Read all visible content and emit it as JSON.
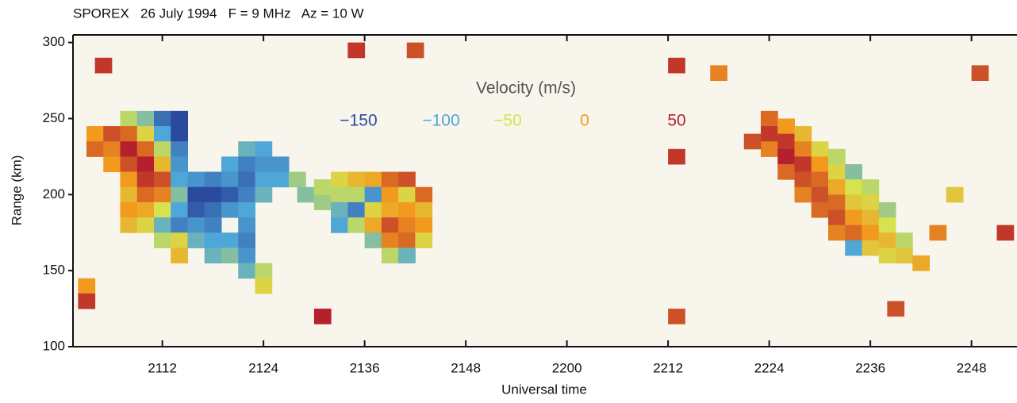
{
  "chart_data": {
    "type": "heatmap",
    "title": "SPOREX   26 July 1994   F = 9 MHz   Az = 10 W",
    "xlabel": "Universal time",
    "ylabel": "Range (km)",
    "xlim": [
      1.4,
      113.4
    ],
    "xticks": [
      {
        "value": 12,
        "label": "2112"
      },
      {
        "value": 24,
        "label": "2124"
      },
      {
        "value": 36,
        "label": "2136"
      },
      {
        "value": 48,
        "label": "2148"
      },
      {
        "value": 60,
        "label": "2200"
      },
      {
        "value": 72,
        "label": "2212"
      },
      {
        "value": 84,
        "label": "2224"
      },
      {
        "value": 96,
        "label": "2236"
      },
      {
        "value": 108,
        "label": "2248"
      }
    ],
    "ylim": [
      100,
      305
    ],
    "yticks": [
      100,
      150,
      200,
      250,
      300
    ],
    "legend_title": "Velocity (m/s)",
    "legend_values": [
      {
        "value": -150,
        "label": "−150"
      },
      {
        "value": -100,
        "label": "−100"
      },
      {
        "value": -50,
        "label": "−50"
      },
      0,
      50
    ],
    "legend_colors": [
      "#2b4a9e",
      "#4fa6d8",
      "#d6e34e",
      "#f29a1e",
      "#b5202e"
    ],
    "x": [
      4,
      4,
      6,
      6,
      6,
      8,
      8,
      8,
      8,
      8,
      8,
      8,
      8,
      10,
      10,
      10,
      10,
      10,
      10,
      10,
      10,
      12,
      12,
      12,
      12,
      12,
      12,
      12,
      12,
      12,
      14,
      14,
      14,
      14,
      14,
      14,
      14,
      14,
      14,
      14,
      16,
      16,
      16,
      16,
      16,
      18,
      18,
      18,
      18,
      18,
      18,
      20,
      20,
      20,
      20,
      20,
      20,
      22,
      22,
      22,
      22,
      22,
      22,
      22,
      22,
      22,
      24,
      24,
      24,
      24,
      24,
      24,
      26,
      26,
      28,
      29,
      31,
      31,
      33,
      33,
      33,
      33,
      35,
      35,
      35,
      35,
      37,
      37,
      37,
      37,
      37,
      39,
      39,
      39,
      39,
      39,
      39,
      41,
      41,
      41,
      41,
      41,
      41,
      43,
      43,
      43,
      43,
      84,
      84,
      84,
      86,
      86,
      86,
      86,
      88,
      88,
      88,
      88,
      88,
      90,
      90,
      90,
      90,
      90,
      92,
      92,
      92,
      92,
      92,
      92,
      94,
      94,
      94,
      94,
      94,
      94,
      96,
      96,
      96,
      96,
      96,
      98,
      98,
      98,
      98,
      100,
      100,
      102,
      3,
      3,
      5,
      31,
      35,
      42,
      73,
      73,
      78,
      82,
      99,
      109,
      112,
      106,
      104,
      73
    ],
    "y": [
      240,
      230,
      240,
      230,
      220,
      250,
      240,
      230,
      220,
      210,
      200,
      190,
      180,
      250,
      240,
      230,
      220,
      210,
      200,
      190,
      180,
      250,
      240,
      230,
      220,
      210,
      200,
      190,
      180,
      170,
      250,
      240,
      230,
      220,
      210,
      200,
      190,
      180,
      170,
      160,
      210,
      200,
      190,
      180,
      170,
      210,
      200,
      190,
      180,
      170,
      160,
      220,
      210,
      200,
      190,
      170,
      160,
      230,
      220,
      210,
      200,
      190,
      180,
      170,
      160,
      150,
      230,
      220,
      210,
      200,
      150,
      140,
      220,
      210,
      210,
      200,
      195,
      205,
      210,
      200,
      190,
      180,
      210,
      200,
      190,
      180,
      210,
      200,
      190,
      180,
      170,
      210,
      200,
      190,
      180,
      170,
      160,
      210,
      200,
      190,
      180,
      170,
      160,
      200,
      190,
      180,
      170,
      250,
      240,
      230,
      245,
      235,
      225,
      215,
      240,
      230,
      220,
      210,
      200,
      230,
      220,
      210,
      200,
      190,
      225,
      215,
      205,
      195,
      185,
      175,
      215,
      205,
      195,
      185,
      175,
      165,
      205,
      195,
      185,
      175,
      165,
      190,
      180,
      170,
      160,
      170,
      160,
      155,
      140,
      130,
      285,
      120,
      295,
      295,
      285,
      225,
      280,
      235,
      125,
      280,
      175,
      200,
      175,
      120
    ],
    "values": [
      0,
      20,
      30,
      10,
      0,
      -60,
      20,
      50,
      30,
      0,
      -20,
      0,
      -20,
      -80,
      -40,
      20,
      50,
      40,
      20,
      -10,
      -40,
      -130,
      -100,
      -60,
      -20,
      30,
      10,
      -50,
      -90,
      -60,
      -160,
      -150,
      -120,
      -110,
      -100,
      -80,
      -100,
      -120,
      -40,
      -20,
      -110,
      -150,
      -140,
      -110,
      -90,
      -120,
      -160,
      -130,
      -120,
      -100,
      -90,
      -100,
      -110,
      -140,
      -110,
      -100,
      -80,
      -90,
      -120,
      -130,
      -120,
      -100,
      -110,
      -120,
      -110,
      -90,
      -100,
      -110,
      -100,
      -90,
      -60,
      -40,
      -110,
      -100,
      -70,
      -80,
      -70,
      -60,
      -40,
      -60,
      -90,
      -100,
      -20,
      -60,
      -120,
      -60,
      -10,
      -110,
      -40,
      -10,
      -80,
      20,
      0,
      -10,
      30,
      10,
      -60,
      30,
      -40,
      0,
      10,
      20,
      -90,
      20,
      -20,
      0,
      -40,
      20,
      40,
      10,
      0,
      40,
      50,
      20,
      -20,
      10,
      40,
      30,
      10,
      -40,
      0,
      20,
      30,
      20,
      -60,
      -40,
      -10,
      20,
      30,
      10,
      -80,
      -50,
      -30,
      0,
      20,
      -100,
      -60,
      -40,
      -20,
      0,
      -30,
      -70,
      -50,
      -20,
      -40,
      -60,
      -30,
      -10,
      0,
      40,
      40,
      50,
      40,
      30,
      40,
      40,
      10,
      30,
      30,
      30,
      40,
      -30,
      10,
      30
    ]
  }
}
